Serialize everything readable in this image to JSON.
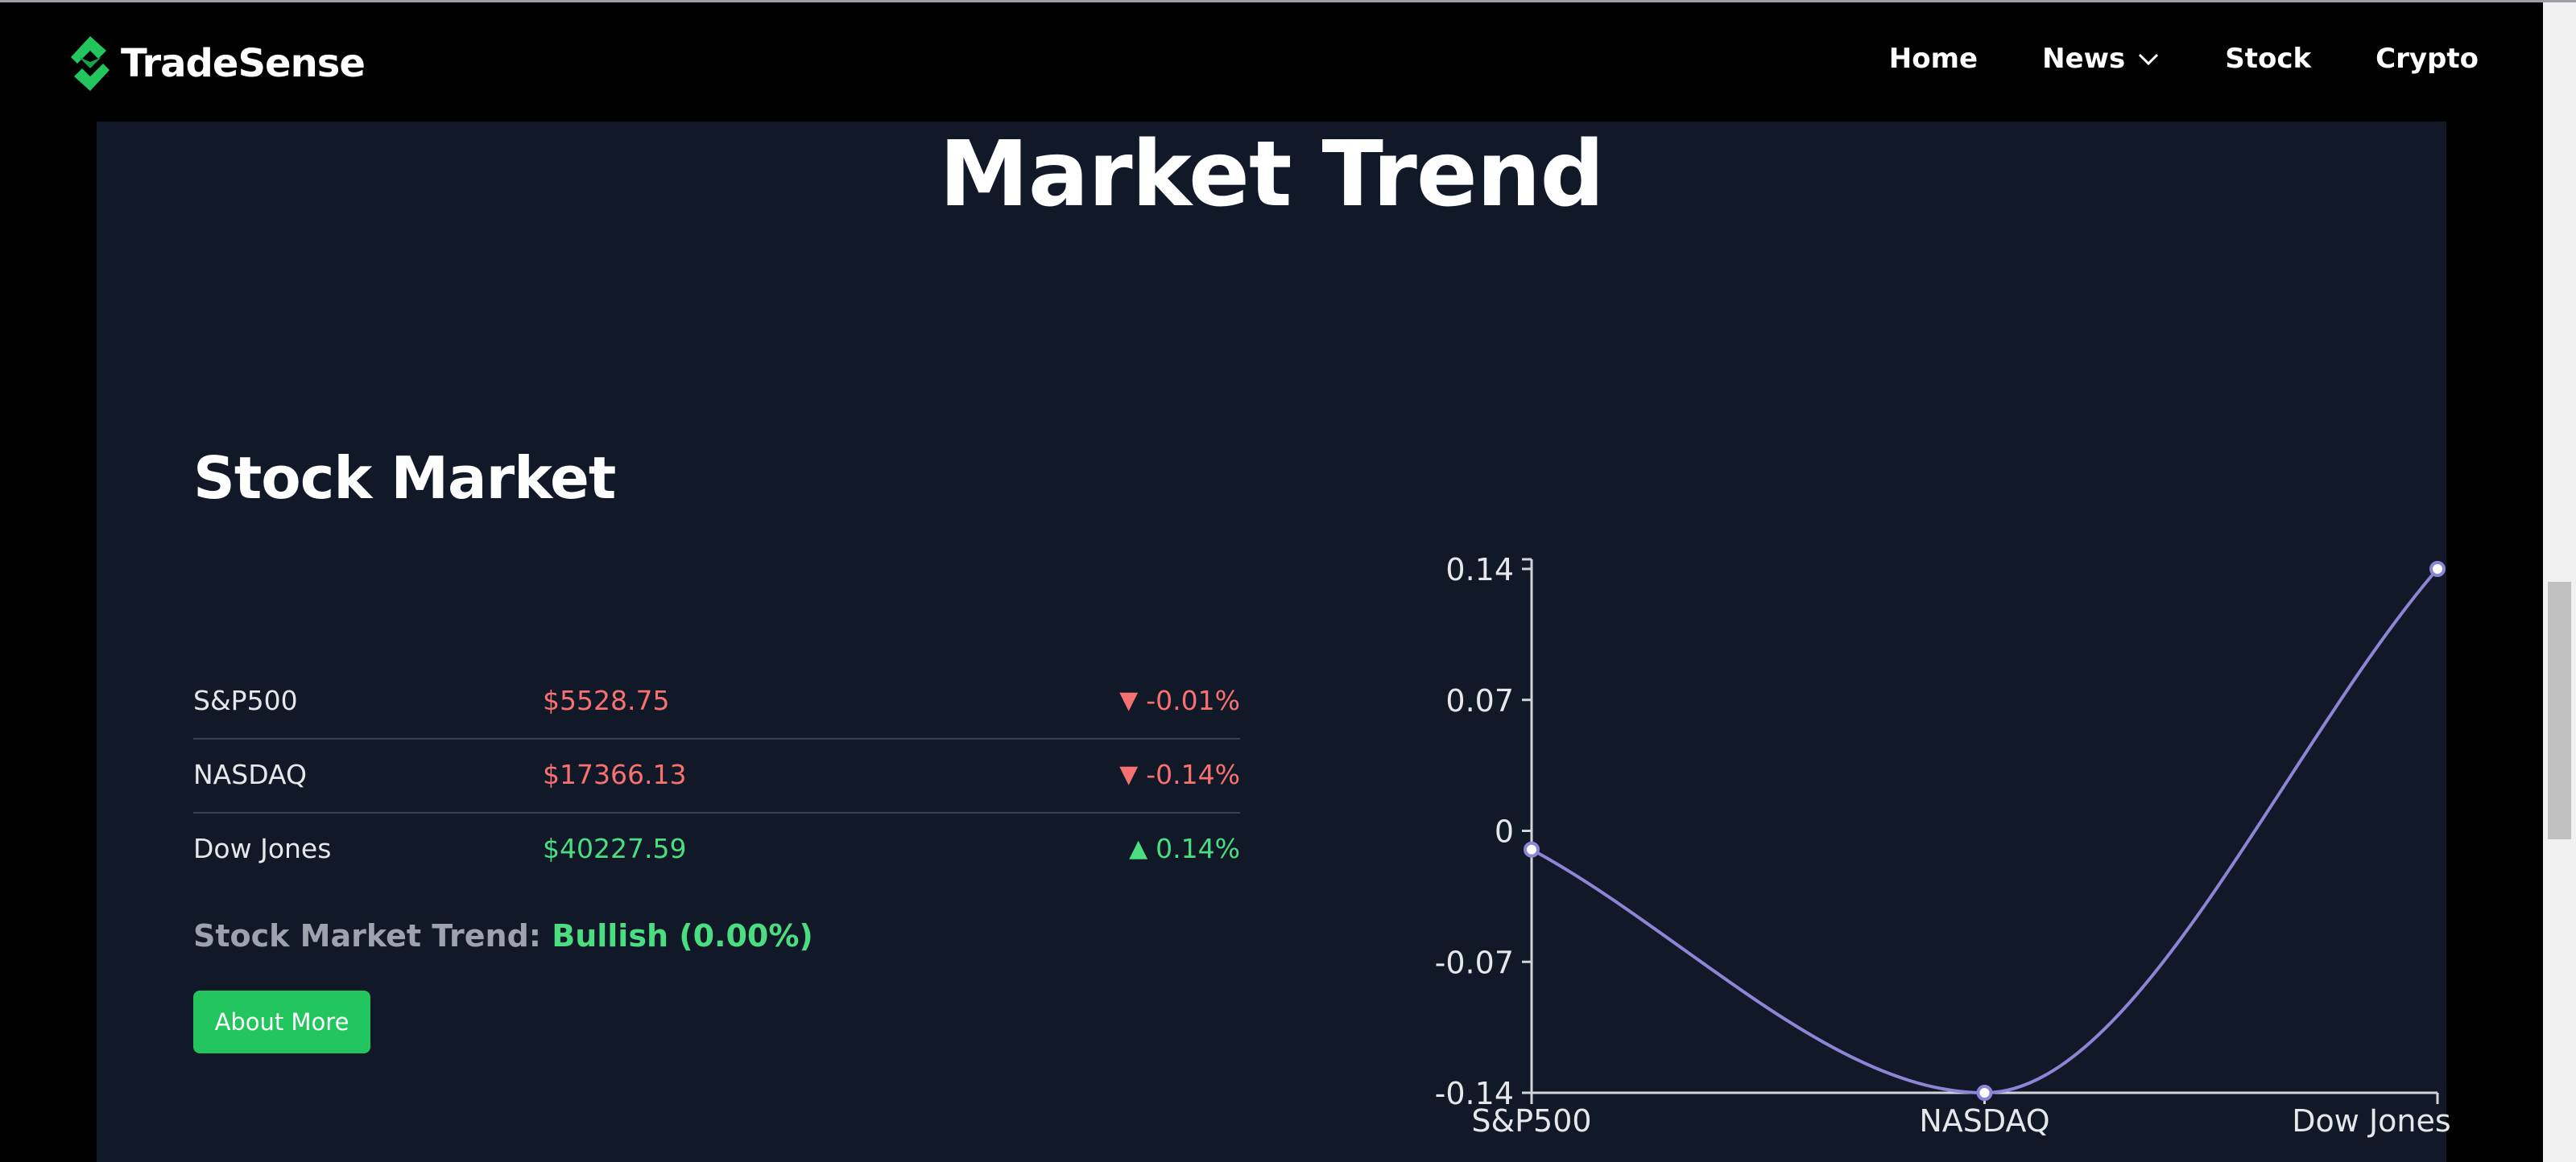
{
  "navbar": {
    "brand": "TradeSense",
    "logo_icon": "tradesense-logo-icon",
    "links": [
      {
        "label": "Home"
      },
      {
        "label": "News",
        "has_dropdown": true
      },
      {
        "label": "Stock"
      },
      {
        "label": "Crypto"
      }
    ]
  },
  "page": {
    "title": "Market Trend"
  },
  "stock_market": {
    "title": "Stock Market",
    "rows": [
      {
        "name": "S&P500",
        "price": "$5528.75",
        "change": "-0.01%",
        "direction": "down"
      },
      {
        "name": "NASDAQ",
        "price": "$17366.13",
        "change": "-0.14%",
        "direction": "down"
      },
      {
        "name": "Dow Jones",
        "price": "$40227.59",
        "change": "0.14%",
        "direction": "up"
      }
    ],
    "trend_label": "Stock Market Trend:",
    "trend_value": "Bullish (0.00%)",
    "button_label": "About More"
  },
  "colors": {
    "up": "#4ade80",
    "down": "#f87171",
    "accent": "#22c55e",
    "line": "#8b85d6",
    "panel": "#111827"
  },
  "chart_data": {
    "type": "line",
    "categories": [
      "S&P500",
      "NASDAQ",
      "Dow Jones"
    ],
    "values": [
      -0.01,
      -0.14,
      0.14
    ],
    "y_ticks": [
      "0.14",
      "0.07",
      "0",
      "-0.07",
      "-0.14"
    ],
    "y_tick_values": [
      0.14,
      0.07,
      0,
      -0.07,
      -0.14
    ],
    "ylim": [
      -0.14,
      0.14
    ],
    "grid": false,
    "legend": "none"
  }
}
